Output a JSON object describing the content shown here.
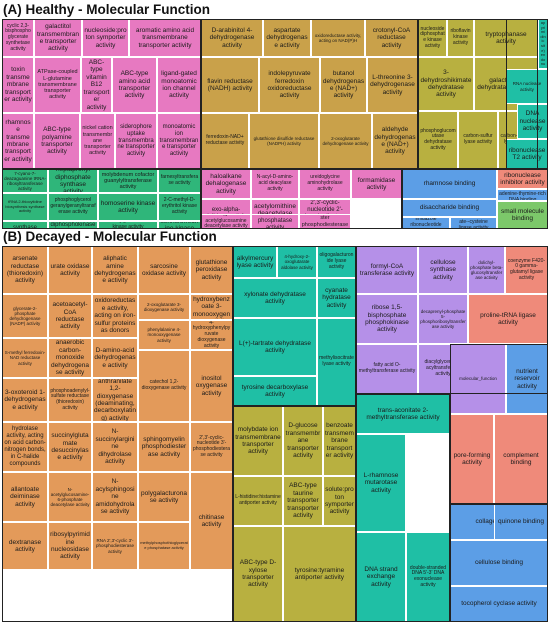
{
  "colors": {
    "pink": "#e779c1",
    "gold": "#c9a14a",
    "teal": "#1fbfa5",
    "green": "#2fb67a",
    "blue": "#5c9ee6",
    "salmon": "#ef8a7a",
    "yellow": "#d8c640",
    "purple": "#b590e8",
    "orange": "#e39a5a",
    "olive": "#b8b040",
    "ltgreen": "#7cc86a",
    "cyan": "#4cc0d8"
  },
  "panels": [
    {
      "title": "(A) Healthy - Molecular Function"
    },
    {
      "title": "(B) Decayed - Molecular Function"
    }
  ],
  "chart_data": [
    {
      "type": "treemap",
      "title": "(A) Healthy - Molecular Function",
      "cells": [
        {
          "label": "cyclic 2,3-bisphosphoglycerate synthetase activity",
          "group": "pink"
        },
        {
          "label": "galactitol transmembrane transporter activity",
          "group": "pink"
        },
        {
          "label": "nucleoside:proton symporter activity",
          "group": "pink"
        },
        {
          "label": "aromatic amino acid transmembrane transporter activity",
          "group": "pink"
        },
        {
          "label": "toxin transmembrane transporter activity",
          "group": "pink"
        },
        {
          "label": "ATPase-coupled L-glutamine transmembrane transporter activity",
          "group": "pink"
        },
        {
          "label": "ABC-type vitamin B12 transporter activity",
          "group": "pink"
        },
        {
          "label": "ABC-type amino acid transporter activity",
          "group": "pink"
        },
        {
          "label": "ligand-gated monoatomic ion channel activity",
          "group": "pink"
        },
        {
          "label": "rhamnose transmembrane transporter activity",
          "group": "pink"
        },
        {
          "label": "ABC-type polyamine transporter activity",
          "group": "pink"
        },
        {
          "label": "nickel cation transmembrane transporter activity",
          "group": "pink"
        },
        {
          "label": "siderophore uptake transmembrane transporter activity",
          "group": "pink"
        },
        {
          "label": "monoatomic ion transmembrane transporter activity",
          "group": "pink"
        },
        {
          "label": "D-arabinitol 4-dehydrogenase activity",
          "group": "gold"
        },
        {
          "label": "aspartate dehydrogenase activity",
          "group": "gold"
        },
        {
          "label": "oxidoreductase activity, acting on NAD(P)H",
          "group": "gold"
        },
        {
          "label": "crotonyl-CoA reductase activity",
          "group": "gold"
        },
        {
          "label": "flavin reductase (NADH) activity",
          "group": "gold"
        },
        {
          "label": "indolepyruvate ferredoxin oxidoreductase activity",
          "group": "gold"
        },
        {
          "label": "butanol dehydrogenase (NAD+) activity",
          "group": "gold"
        },
        {
          "label": "L-threonine 3-dehydrogenase activity",
          "group": "gold"
        },
        {
          "label": "ferredoxin-NAD+ reductase activity",
          "group": "gold"
        },
        {
          "label": "glutathione disulfide reductase (NADPH) activity",
          "group": "gold"
        },
        {
          "label": "2-oxoglutarate dehydrogenase activity",
          "group": "gold"
        },
        {
          "label": "aldehyde dehydrogenase (NAD+) activity",
          "group": "gold"
        },
        {
          "label": "nucleoside diphosphate kinase activity",
          "group": "olive"
        },
        {
          "label": "riboflavin kinase activity",
          "group": "olive"
        },
        {
          "label": "tryptophanase activity",
          "group": "olive"
        },
        {
          "label": "3-dehydroshikimate dehydratase activity",
          "group": "olive"
        },
        {
          "label": "galactonate dehydratase activity",
          "group": "olive"
        },
        {
          "label": "phosphoglucomutase dehydratase activity",
          "group": "olive"
        },
        {
          "label": "carbon-sulfur lyase activity",
          "group": "olive"
        },
        {
          "label": "carbon-nitrogen lyase activity",
          "group": "olive"
        },
        {
          "label": "DNA-(apurinic or apyrimidinic site) endonuclease activity",
          "group": "teal"
        },
        {
          "label": "2'-RNA processing endonuclease activity",
          "group": "teal"
        },
        {
          "label": "RNA nuclease activity",
          "group": "teal"
        },
        {
          "label": "DNA nuclease activity",
          "group": "teal"
        },
        {
          "label": "ribonuclease T2 activity",
          "group": "teal"
        },
        {
          "label": "7-cyano-7-deazaguanine tRNA-ribosyltransferase activity",
          "group": "green"
        },
        {
          "label": "heptaprenyl diphosphate synthase activity",
          "group": "green"
        },
        {
          "label": "molybdenum cofactor guanylyltransferase activity",
          "group": "green"
        },
        {
          "label": "farnesyltransferase activity",
          "group": "green"
        },
        {
          "label": "tRNA 2-thiocytidine biosynthesis synthase activity",
          "group": "green"
        },
        {
          "label": "phosphoglycerol geranylgeranyltransferase activity",
          "group": "green"
        },
        {
          "label": "homoserine kinase activity",
          "group": "green"
        },
        {
          "label": "2-C-methyl-D-erythritol kinase activity",
          "group": "green"
        },
        {
          "label": "2',3'-cyclic GMP-AMP synthase activity",
          "group": "green"
        },
        {
          "label": "GTP diphosphokinase activity",
          "group": "green"
        },
        {
          "label": "N-acetylglucosamine kinase activity",
          "group": "green"
        },
        {
          "label": "protein serine/threonine kinase activity",
          "group": "green"
        },
        {
          "label": "haloalkane dehalogenase activity",
          "group": "pink"
        },
        {
          "label": "N-acyl-D-amino-acid deacylase activity",
          "group": "pink"
        },
        {
          "label": "ureidoglycine aminohydrolase activity",
          "group": "pink"
        },
        {
          "label": "formamidase activity",
          "group": "pink"
        },
        {
          "label": "exo-alpha-sialidase activity",
          "group": "pink"
        },
        {
          "label": "acetylornithine deacetylase activity",
          "group": "pink"
        },
        {
          "label": "2',3'-cyclic-nucleotide 2'-phosphodiesterase activity",
          "group": "pink"
        },
        {
          "label": "N-acetylglucosamine deacetylase activity",
          "group": "pink"
        },
        {
          "label": "alkaline phosphatase activity",
          "group": "pink"
        },
        {
          "label": "glycerophosphodiester phosphodiesterase activity",
          "group": "pink"
        },
        {
          "label": "rhamnose binding",
          "group": "blue"
        },
        {
          "label": "disaccharide binding",
          "group": "blue"
        },
        {
          "label": "5-carboxyamino-imidazole ribonucleotide synthase activity",
          "group": "blue"
        },
        {
          "label": "phosphopantothenate--cysteine ligase activity",
          "group": "blue"
        },
        {
          "label": "ribonuclease inhibitor activity",
          "group": "salmon"
        },
        {
          "label": "minor groove of adenine-thymine-rich DNA binding",
          "group": "blue"
        },
        {
          "label": "small molecule binding",
          "group": "ltgreen"
        },
        {
          "label": "pyrroloquinoline quinone binding",
          "group": "yellow"
        },
        {
          "label": "SNAP receptor activity",
          "group": "cyan"
        },
        {
          "label": "aldose 1-epimerase activity",
          "group": "purple"
        }
      ]
    },
    {
      "type": "treemap",
      "title": "(B) Decayed - Molecular Function",
      "cells": [
        {
          "label": "arsenate reductase (thioredoxin) activity",
          "group": "orange"
        },
        {
          "label": "urate oxidase activity",
          "group": "orange"
        },
        {
          "label": "aliphatic amine dehydrogenase activity",
          "group": "orange"
        },
        {
          "label": "sarcosine oxidase activity",
          "group": "orange"
        },
        {
          "label": "glutathione peroxidase activity",
          "group": "orange"
        },
        {
          "label": "glycerate-2-phosphate dehydrogenase (NADP) activity",
          "group": "orange"
        },
        {
          "label": "acetoacetyl-CoA reductase activity",
          "group": "orange"
        },
        {
          "label": "oxidoreductase activity, acting on iron-sulfur proteins as donors",
          "group": "orange"
        },
        {
          "label": "2-oxoglutarate 3-dioxygenase activity",
          "group": "orange"
        },
        {
          "label": "4-hydroxybenzoate 3-monooxygenase activity",
          "group": "orange"
        },
        {
          "label": "S-methyl ferredoxin-NAD reductase activity",
          "group": "orange"
        },
        {
          "label": "anaerobic carbon-monoxide dehydrogenase activity",
          "group": "orange"
        },
        {
          "label": "D-amino-acid dehydrogenase activity",
          "group": "orange"
        },
        {
          "label": "phenylalanine 4-monooxygenase activity",
          "group": "orange"
        },
        {
          "label": "4-hydroxyphenylpyruvate dioxygenase activity",
          "group": "orange"
        },
        {
          "label": "3-oxoteroid 1-dehydrogenase activity",
          "group": "orange"
        },
        {
          "label": "phosphoadenylyl-sulfate reductase (thioredoxin) activity",
          "group": "orange"
        },
        {
          "label": "anthranilate 1,2-dioxygenase (deaminating, decarboxylating) activity",
          "group": "orange"
        },
        {
          "label": "catechol 1,2-dioxygenase activity",
          "group": "orange"
        },
        {
          "label": "inositol oxygenase activity",
          "group": "orange"
        },
        {
          "label": "hydrolase activity, acting on acid carbon-nitrogen bonds, in C-halide compounds",
          "group": "orange"
        },
        {
          "label": "succinylglutamate desuccinylase activity",
          "group": "orange"
        },
        {
          "label": "N-succinylarginine dihydrolase activity",
          "group": "orange"
        },
        {
          "label": "sphingomyelin phosphodiesterase activity",
          "group": "orange"
        },
        {
          "label": "2',3'-cyclic-nucleotide 3'-phosphodiesterase activity",
          "group": "orange"
        },
        {
          "label": "allantoate deiminase activity",
          "group": "orange"
        },
        {
          "label": "N-acetylglucosamine-6-phosphate deacetylase activity",
          "group": "orange"
        },
        {
          "label": "N-acylsphingosine amidohydrolase activity",
          "group": "orange"
        },
        {
          "label": "polygalacturonase activity",
          "group": "orange"
        },
        {
          "label": "dextranase activity",
          "group": "orange"
        },
        {
          "label": "ribosylpyrimidine nucleosidase activity",
          "group": "orange"
        },
        {
          "label": "RNA 2',3'-cyclic 3'-phosphodiesterase activity",
          "group": "orange"
        },
        {
          "label": "methylphosphothioglycerate phosphatase activity",
          "group": "orange"
        },
        {
          "label": "chitinase activity",
          "group": "orange"
        },
        {
          "label": "alkylmercury lyase activity",
          "group": "teal"
        },
        {
          "label": "4-hydroxy-2-oxoglutarate aldolase activity",
          "group": "teal"
        },
        {
          "label": "oligogalacturonide lyase activity",
          "group": "teal"
        },
        {
          "label": "xylonate dehydratase activity",
          "group": "teal"
        },
        {
          "label": "cyanate hydratase activity",
          "group": "teal"
        },
        {
          "label": "L(+)-tartrate dehydratase activity",
          "group": "teal"
        },
        {
          "label": "tyrosine decarboxylase activity",
          "group": "teal"
        },
        {
          "label": "methylisocitrate lyase activity",
          "group": "teal"
        },
        {
          "label": "molybdate ion transmembrane transporter activity",
          "group": "olive"
        },
        {
          "label": "D-glucose transmembrane transporter activity",
          "group": "olive"
        },
        {
          "label": "benzoate transmembrane transporter activity",
          "group": "olive"
        },
        {
          "label": "L-histidine:histamine antiporter activity",
          "group": "olive"
        },
        {
          "label": "ABC-type taurine transporter transporter activity",
          "group": "olive"
        },
        {
          "label": "solute:proton symporter activity",
          "group": "olive"
        },
        {
          "label": "ABC-type D-xylose transporter activity",
          "group": "olive"
        },
        {
          "label": "tyrosine:tyramine antiporter activity",
          "group": "olive"
        },
        {
          "label": "formyl-CoA transferase activity",
          "group": "purple"
        },
        {
          "label": "ribose 1,5-bisphosphate phosphokinase activity",
          "group": "purple"
        },
        {
          "label": "cellulose synthase activity",
          "group": "purple"
        },
        {
          "label": "dolichyl-phosphate beta-glucosyltransferase activity",
          "group": "purple"
        },
        {
          "label": "coenzyme F420-0 gamma-glutamyl ligase activity",
          "group": "salmon"
        },
        {
          "label": "proline-tRNA ligase activity",
          "group": "salmon"
        },
        {
          "label": "fatty acid O-methyltransferase activity",
          "group": "purple"
        },
        {
          "label": "decaprenyl-phosphate 5-phosphoribosyltransferase activity",
          "group": "purple"
        },
        {
          "label": "diacylglycerol O-acyltransferase activity",
          "group": "purple"
        },
        {
          "label": "trans-aconitate 2-methyltransferase activity",
          "group": "teal"
        },
        {
          "label": "L-rhamnose mutarotase activity",
          "group": "teal"
        },
        {
          "label": "DNA strand exchange activity",
          "group": "teal"
        },
        {
          "label": "double-stranded DNA 5'-3' DNA exonuclease activity",
          "group": "teal"
        },
        {
          "label": "molecular_function",
          "group": "purple"
        },
        {
          "label": "nutrient reservoir activity",
          "group": "blue"
        },
        {
          "label": "pore-forming activity",
          "group": "salmon"
        },
        {
          "label": "complement binding",
          "group": "salmon"
        },
        {
          "label": "DNA binding, bending",
          "group": "salmon"
        },
        {
          "label": "collagen binding",
          "group": "blue"
        },
        {
          "label": "quinone binding",
          "group": "blue"
        },
        {
          "label": "cellulose binding",
          "group": "blue"
        },
        {
          "label": "tocopherol cyclase activity",
          "group": "blue"
        }
      ]
    }
  ]
}
